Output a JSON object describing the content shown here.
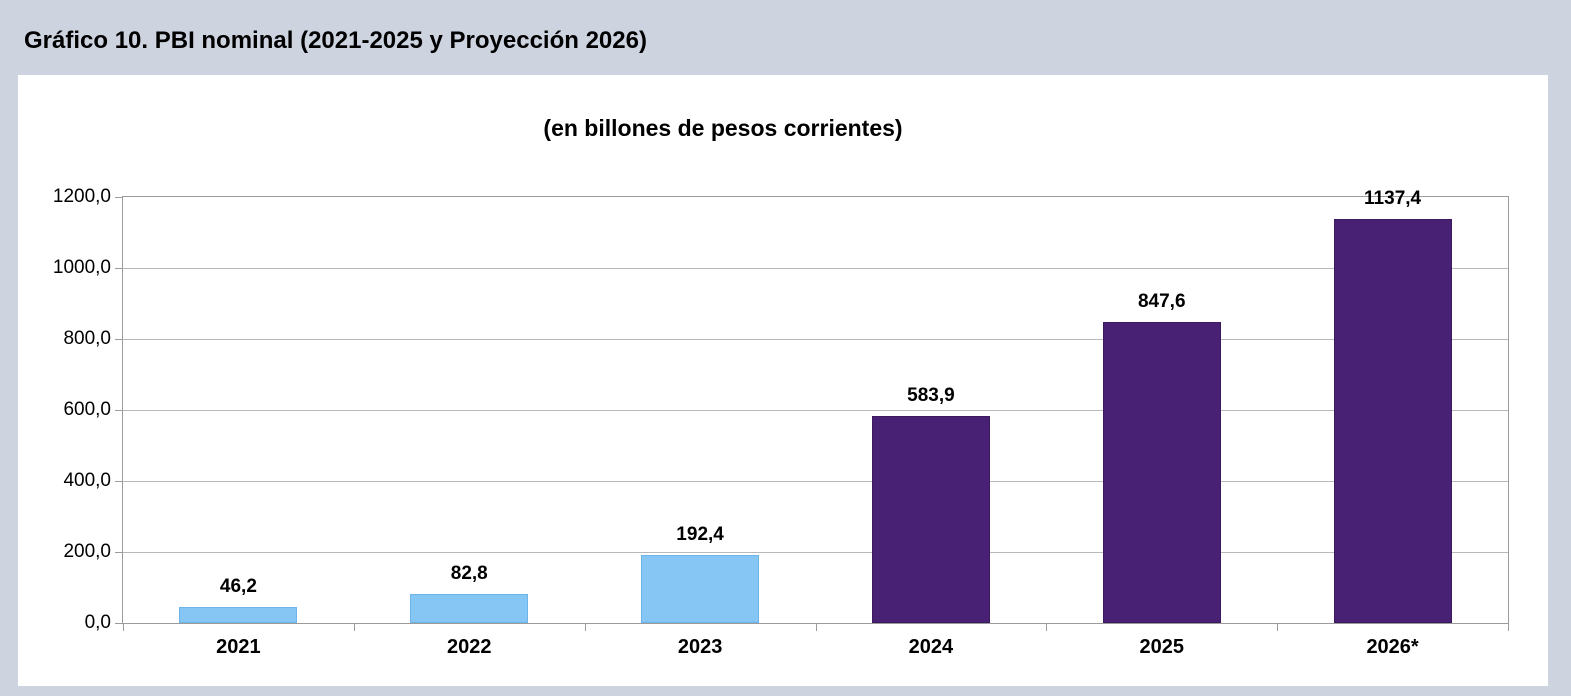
{
  "window": {
    "background": "#ced3e0",
    "panel_background": "#ffffff"
  },
  "header": {
    "title": "Gráfico 10. PBI nominal (2021-2025 y Proyección 2026)"
  },
  "chart_data": {
    "type": "bar",
    "title": "(en billones de pesos corrientes)",
    "categories": [
      "2021",
      "2022",
      "2023",
      "2024",
      "2025",
      "2026*"
    ],
    "series": [
      {
        "name": "PBI nominal",
        "values": [
          46.2,
          82.8,
          192.4,
          583.9,
          847.6,
          1137.4
        ],
        "value_labels": [
          "46,2",
          "82,8",
          "192,4",
          "583,9",
          "847,6",
          "1137,4"
        ],
        "bar_colors": [
          "#85c6f5",
          "#85c6f5",
          "#85c6f5",
          "#482074",
          "#482074",
          "#482074"
        ],
        "bar_border_colors": [
          "#6db4e8",
          "#6db4e8",
          "#6db4e8",
          "#3b1a60",
          "#3b1a60",
          "#3b1a60"
        ]
      }
    ],
    "xlabel": "",
    "ylabel": "",
    "ylim": [
      0,
      1200
    ],
    "ytick_step": 200,
    "ytick_labels": [
      "0,0",
      "200,0",
      "400,0",
      "600,0",
      "800,0",
      "1000,0",
      "1200,0"
    ],
    "grid": "horizontal",
    "legend_position": "none",
    "colors": {
      "bar_past": "#85c6f5",
      "bar_projection": "#482074",
      "gridline": "#b9b9b9",
      "axis_frame": "#9b9b9b",
      "label_text": "#000000"
    }
  }
}
